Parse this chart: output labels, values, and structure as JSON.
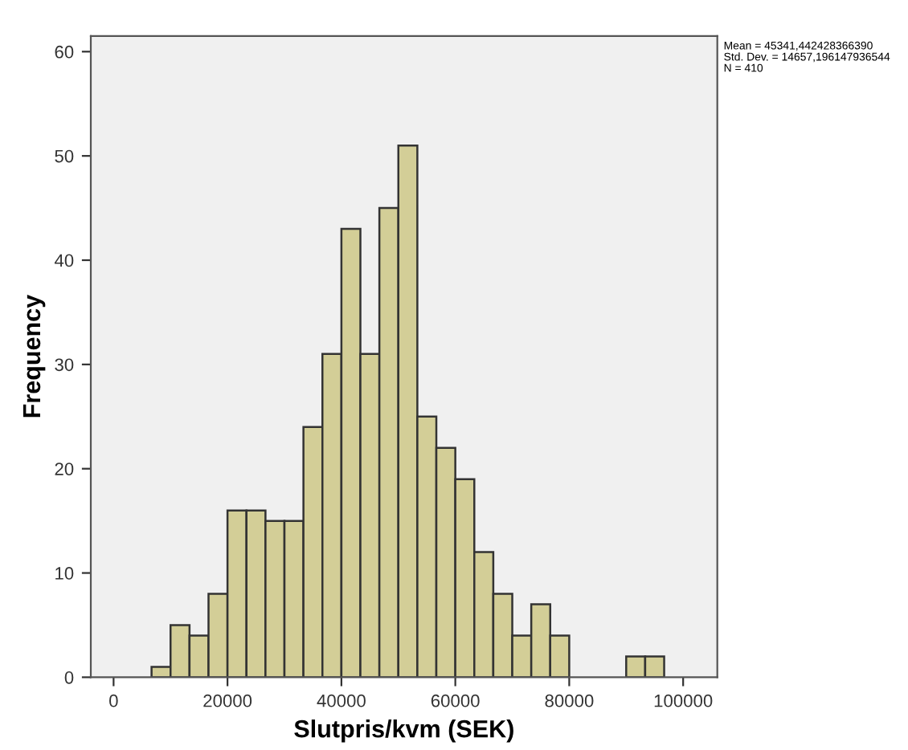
{
  "chart_data": {
    "type": "histogram",
    "xlabel": "Slutpris/kvm (SEK)",
    "ylabel": "Frequency",
    "bins": [
      6666.7,
      10000,
      13333.3,
      16666.7,
      20000,
      23333.3,
      26666.7,
      30000,
      33333.3,
      36666.7,
      40000,
      43333.3,
      46666.7,
      50000,
      53333.3,
      56666.7,
      60000,
      63333.3,
      66666.7,
      70000,
      73333.3,
      76666.7,
      80000,
      83333.3,
      86666.7,
      90000,
      93333.3,
      96666.7
    ],
    "values": [
      1,
      5,
      4,
      8,
      16,
      16,
      15,
      15,
      24,
      31,
      43,
      31,
      45,
      51,
      25,
      22,
      19,
      12,
      8,
      4,
      7,
      4,
      0,
      0,
      0,
      2,
      2
    ],
    "color": "#d3ce97",
    "xlim": [
      -4000,
      106000
    ],
    "xticks": [
      0,
      20000,
      40000,
      60000,
      80000,
      100000
    ],
    "ylim": [
      0,
      61.5
    ],
    "yticks": [
      0,
      10,
      20,
      30,
      40,
      50,
      60
    ],
    "grid": false,
    "annotations": [
      "Mean = 45341,442428366390\nStd. Dev. = 14657,196147936544\nN = 410"
    ]
  }
}
